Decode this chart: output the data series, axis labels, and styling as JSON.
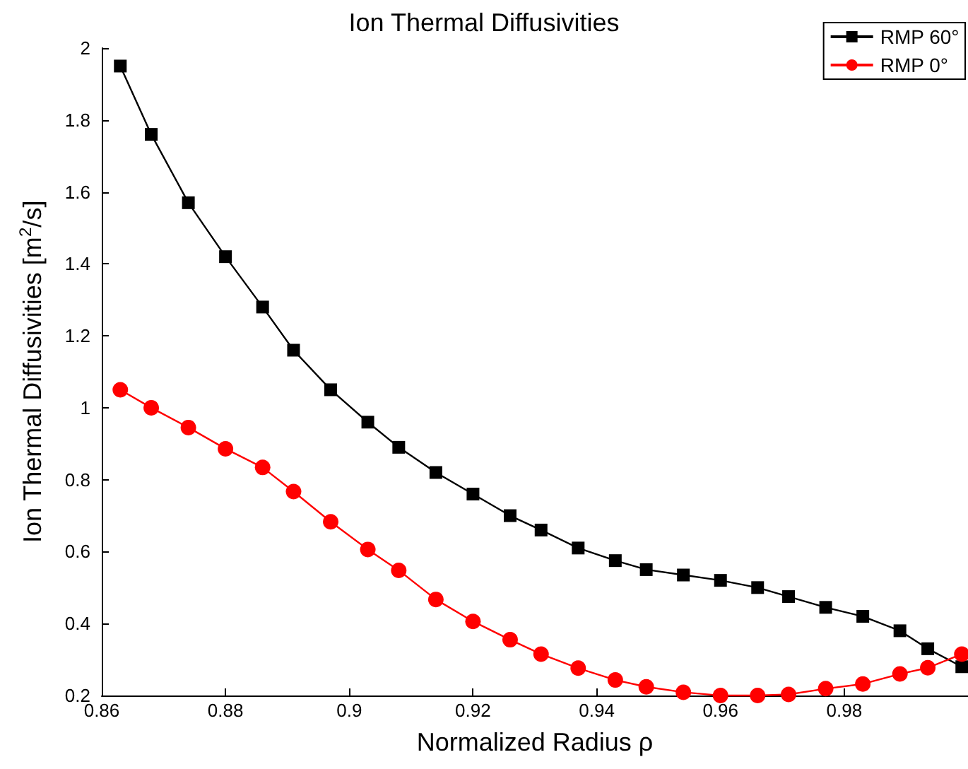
{
  "chart_data": {
    "type": "line",
    "title": "Ion Thermal Diffusivities",
    "xlabel": "Normalized Radius ρ",
    "ylabel": "Ion Thermal Diffusivities [m$^{2}$/s]",
    "x": [
      0.863,
      0.868,
      0.874,
      0.88,
      0.886,
      0.891,
      0.897,
      0.903,
      0.908,
      0.914,
      0.92,
      0.926,
      0.931,
      0.937,
      0.943,
      0.948,
      0.954,
      0.96,
      0.966,
      0.971,
      0.977,
      0.983,
      0.989,
      0.9935,
      0.999
    ],
    "series": [
      {
        "name": "RMP 60°",
        "color": "#000000",
        "marker": "square",
        "values": [
          1.95,
          1.76,
          1.57,
          1.42,
          1.28,
          1.16,
          1.05,
          0.96,
          0.89,
          0.82,
          0.76,
          0.7,
          0.66,
          0.61,
          0.575,
          0.55,
          0.535,
          0.52,
          0.5,
          0.475,
          0.445,
          0.42,
          0.38,
          0.33,
          0.28
        ]
      },
      {
        "name": "RMP 0°",
        "color": "#ff0000",
        "marker": "circle",
        "values": [
          1.05,
          1.0,
          0.945,
          0.886,
          0.834,
          0.767,
          0.683,
          0.606,
          0.548,
          0.467,
          0.406,
          0.355,
          0.315,
          0.276,
          0.243,
          0.224,
          0.209,
          0.2,
          0.2,
          0.203,
          0.219,
          0.232,
          0.26,
          0.277,
          0.315
        ]
      }
    ],
    "xlim": [
      0.86,
      1.0
    ],
    "xticks": [
      0.86,
      0.88,
      0.9,
      0.92,
      0.94,
      0.96,
      0.98
    ],
    "ylim": [
      0.2,
      2
    ],
    "yticks": [
      0.2,
      0.4,
      0.6,
      0.8,
      1,
      1.2,
      1.4,
      1.6,
      1.8,
      2
    ],
    "grid": false,
    "legend": "top right",
    "line_style": "solid"
  }
}
